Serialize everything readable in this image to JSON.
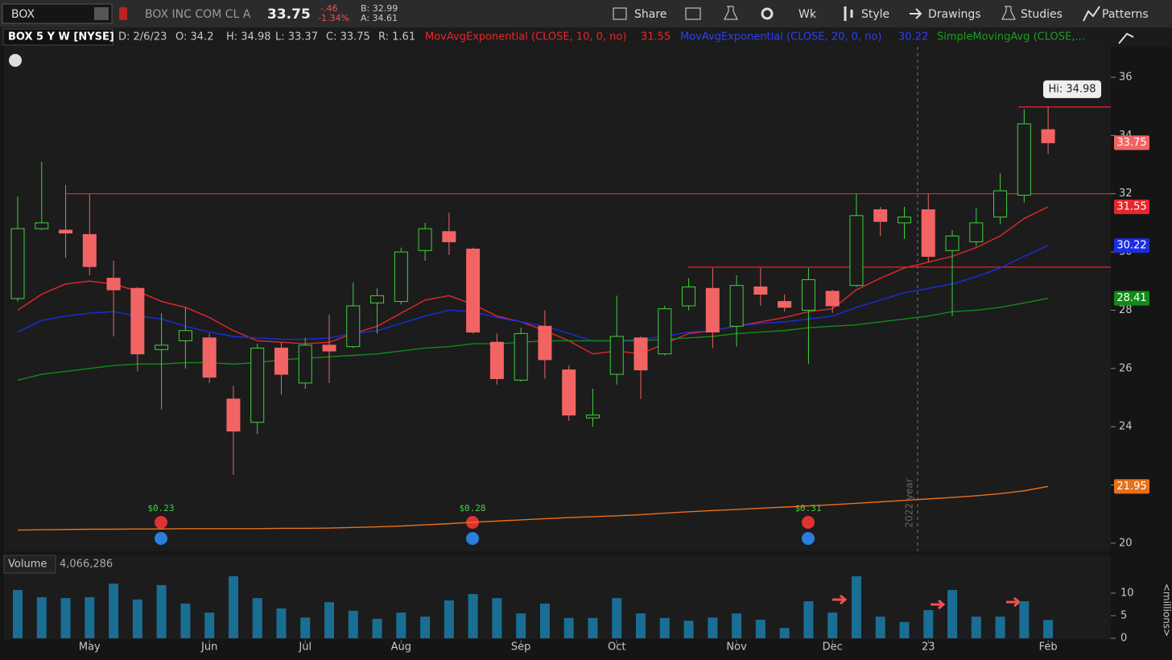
{
  "toolbar": {
    "symbol": "BOX",
    "company": "BOX INC COM CL A",
    "last": "33.75",
    "change": "-.46",
    "change_pct": "-1.34%",
    "bid": "B: 32.99",
    "ask": "A: 34.61",
    "buttons": [
      "Share",
      "Wk",
      "Style",
      "Drawings",
      "Studies",
      "Patterns"
    ]
  },
  "info_bar": {
    "symbol": "BOX 5 Y W [NYSE]",
    "date": "D: 2/6/23",
    "open": "O: 34.2",
    "high": "H: 34.98",
    "low": "L: 33.37",
    "close": "C: 33.75",
    "range": "R: 1.61"
  },
  "chart_data": {
    "type": "candlestick",
    "categories": [
      null,
      null,
      null,
      "May",
      null,
      null,
      null,
      null,
      "Jun",
      null,
      null,
      null,
      "Jul",
      null,
      null,
      null,
      "Aug",
      null,
      null,
      null,
      null,
      "Sep",
      null,
      null,
      null,
      "Oct",
      null,
      null,
      null,
      null,
      "Nov",
      null,
      null,
      null,
      "Dec",
      null,
      null,
      null,
      "23",
      null,
      null,
      null,
      null,
      "Feb"
    ],
    "open": [
      28.4,
      30.8,
      30.75,
      30.6,
      29.1,
      28.75,
      26.65,
      26.95,
      27.05,
      24.95,
      24.15,
      26.7,
      25.5,
      26.8,
      26.75,
      28.25,
      28.3,
      30.05,
      30.7,
      30.1,
      26.9,
      25.6,
      27.45,
      25.95,
      24.3,
      25.8,
      27.05,
      26.5,
      28.15,
      28.75,
      27.45,
      28.8,
      28.3,
      28.0,
      28.65,
      28.85,
      31.45,
      31.0,
      31.45,
      30.05,
      30.35,
      31.2,
      31.95,
      34.2
    ],
    "high": [
      31.9,
      33.1,
      32.3,
      32.0,
      29.7,
      28.8,
      27.9,
      28.1,
      27.2,
      25.4,
      26.85,
      26.9,
      27.05,
      27.85,
      28.95,
      28.75,
      30.15,
      31.0,
      31.35,
      30.15,
      27.2,
      27.4,
      28.0,
      26.1,
      25.3,
      28.5,
      27.1,
      28.15,
      29.1,
      29.45,
      29.2,
      29.45,
      28.55,
      29.45,
      28.7,
      32.0,
      31.55,
      31.55,
      32.0,
      30.75,
      31.5,
      32.7,
      34.9,
      34.98
    ],
    "low": [
      28.3,
      30.75,
      29.8,
      29.2,
      27.1,
      25.9,
      24.6,
      26.0,
      25.5,
      22.35,
      23.75,
      25.1,
      25.3,
      25.5,
      26.7,
      27.2,
      28.2,
      29.7,
      29.9,
      27.2,
      25.45,
      25.55,
      25.65,
      24.2,
      24.0,
      25.45,
      24.95,
      26.45,
      28.0,
      26.7,
      26.75,
      28.15,
      27.95,
      26.15,
      27.9,
      28.8,
      30.55,
      30.45,
      29.65,
      27.8,
      30.2,
      30.95,
      31.7,
      33.37
    ],
    "close": [
      30.8,
      31.0,
      30.65,
      29.5,
      28.7,
      26.5,
      26.8,
      27.3,
      25.7,
      23.85,
      26.7,
      25.8,
      26.8,
      26.6,
      28.15,
      28.5,
      30.0,
      30.8,
      30.35,
      27.25,
      25.65,
      27.2,
      26.3,
      24.4,
      24.4,
      27.1,
      25.95,
      28.05,
      28.8,
      27.25,
      28.85,
      28.55,
      28.1,
      29.05,
      28.15,
      31.25,
      31.05,
      31.2,
      29.85,
      30.55,
      31.0,
      32.1,
      34.4,
      33.75
    ],
    "up_color": "#3fd13f",
    "down_color": "#f26464",
    "series": [
      {
        "name": "MovAvgExponential (CLOSE, 10, 0, no)",
        "color": "#e8262b",
        "values": [
          28.0,
          28.55,
          28.9,
          29.0,
          28.9,
          28.65,
          28.3,
          28.1,
          27.75,
          27.3,
          26.95,
          26.9,
          26.85,
          26.9,
          27.2,
          27.45,
          27.9,
          28.35,
          28.5,
          28.2,
          27.8,
          27.6,
          27.3,
          26.95,
          26.5,
          26.6,
          26.5,
          26.85,
          27.2,
          27.3,
          27.45,
          27.6,
          27.75,
          27.95,
          28.05,
          28.7,
          29.1,
          29.45,
          29.65,
          29.85,
          30.15,
          30.55,
          31.15,
          31.55
        ]
      },
      {
        "name": "MovAvgExponential (CLOSE, 20, 0, no)",
        "color": "#1a2ee0",
        "values": [
          27.25,
          27.65,
          27.8,
          27.9,
          27.95,
          27.8,
          27.7,
          27.45,
          27.25,
          27.1,
          27.05,
          27.0,
          27.0,
          27.05,
          27.2,
          27.3,
          27.55,
          27.8,
          28.0,
          27.95,
          27.75,
          27.6,
          27.45,
          27.2,
          26.95,
          26.95,
          27.0,
          27.1,
          27.25,
          27.3,
          27.45,
          27.55,
          27.6,
          27.7,
          27.8,
          28.1,
          28.35,
          28.6,
          28.75,
          28.9,
          29.15,
          29.45,
          29.85,
          30.22
        ]
      },
      {
        "name": "SimpleMovingAvg (CLOSE,...",
        "color": "#138a18",
        "values": [
          25.6,
          25.8,
          25.9,
          26.0,
          26.1,
          26.15,
          26.15,
          26.2,
          26.2,
          26.15,
          26.2,
          26.3,
          26.35,
          26.4,
          26.45,
          26.5,
          26.6,
          26.7,
          26.75,
          26.85,
          26.85,
          26.9,
          26.95,
          26.95,
          26.95,
          26.95,
          26.95,
          27.0,
          27.05,
          27.1,
          27.2,
          27.25,
          27.3,
          27.4,
          27.45,
          27.5,
          27.6,
          27.7,
          27.8,
          27.95,
          28.0,
          28.1,
          28.25,
          28.41
        ]
      },
      {
        "color": "#e8701a",
        "values": [
          20.45,
          20.46,
          20.47,
          20.48,
          20.48,
          20.49,
          20.49,
          20.5,
          20.5,
          20.5,
          20.5,
          20.51,
          20.51,
          20.52,
          20.54,
          20.56,
          20.59,
          20.63,
          20.67,
          20.72,
          20.76,
          20.8,
          20.84,
          20.88,
          20.91,
          20.94,
          20.98,
          21.03,
          21.08,
          21.12,
          21.16,
          21.2,
          21.24,
          21.28,
          21.32,
          21.37,
          21.42,
          21.47,
          21.52,
          21.57,
          21.63,
          21.7,
          21.8,
          21.95
        ]
      }
    ],
    "ylim": [
      19.72,
      37.05
    ],
    "yticks": [
      20,
      22,
      24,
      26,
      28,
      30,
      32,
      34,
      36
    ],
    "levels": [
      {
        "value": 32,
        "color": "#e8262b"
      },
      {
        "value": 29.48,
        "color": "#e8262b"
      },
      {
        "value": 34.98,
        "color": "#e8262b",
        "label": "Hi: 34.98"
      }
    ],
    "year_marker": "2022 year",
    "dividends": [
      "$0.23",
      "$0.28",
      "$0.31"
    ],
    "volume": {
      "title": "Volume",
      "total": "4,066,286",
      "unit": "<millions>",
      "color": "#1a6e94",
      "values": [
        10.7,
        9.1,
        8.9,
        9.1,
        12.1,
        8.6,
        11.8,
        7.7,
        5.7,
        13.75,
        8.9,
        6.6,
        4.6,
        8.0,
        6.1,
        4.3,
        5.7,
        4.8,
        8.4,
        9.8,
        8.9,
        5.5,
        7.7,
        4.5,
        4.5,
        8.9,
        5.5,
        4.5,
        3.9,
        4.6,
        5.5,
        4.1,
        2.3,
        8.2,
        5.7,
        13.75,
        4.8,
        3.6,
        6.25,
        10.7,
        4.8,
        4.8,
        8.2,
        4.066286
      ],
      "ylim": [
        0,
        14.1
      ],
      "yticks": [
        0,
        5,
        10
      ]
    }
  }
}
